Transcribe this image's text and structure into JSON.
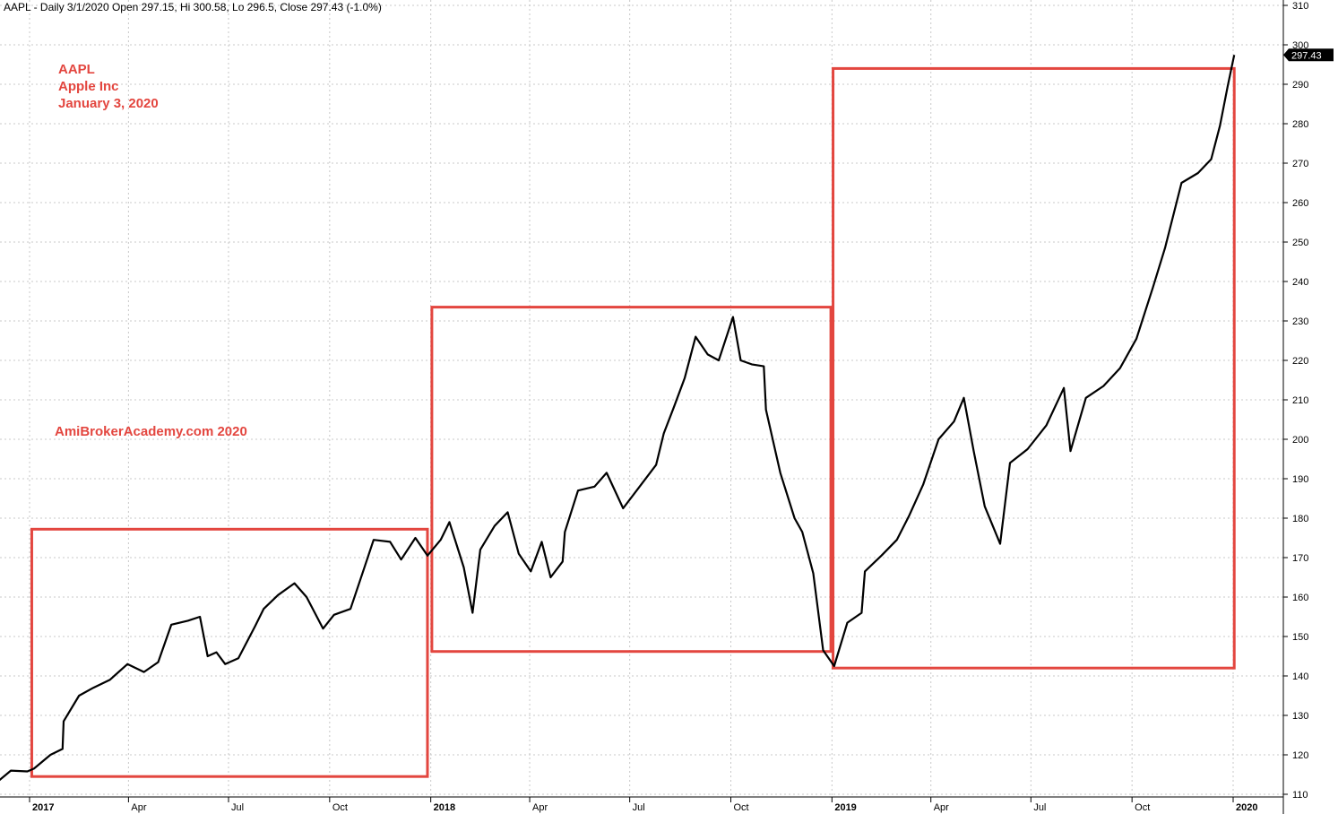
{
  "header": {
    "info": "AAPL - Daily 3/1/2020 Open 297.15, Hi 300.58, Lo 296.5, Close 297.43 (-1.0%)"
  },
  "annotations": {
    "symbol": "AAPL",
    "company": "Apple Inc",
    "date": "January 3, 2020",
    "watermark": "AmiBrokerAcademy.com   2020"
  },
  "colors": {
    "price": "#000000",
    "box": "#e3463f",
    "grid": "#c8c8c8",
    "tag_bg": "#000000",
    "tag_fg": "#ffffff"
  },
  "chart_data": {
    "type": "line",
    "title": "AAPL - Daily",
    "ylim": [
      110,
      310
    ],
    "y_ticks": [
      110,
      120,
      130,
      140,
      150,
      160,
      170,
      180,
      190,
      200,
      210,
      220,
      230,
      240,
      250,
      260,
      270,
      280,
      290,
      300,
      310
    ],
    "x_ticks": [
      {
        "label": "2017",
        "date": "2017-01-01",
        "bold": true
      },
      {
        "label": "Apr",
        "date": "2017-04-01",
        "bold": false
      },
      {
        "label": "Jul",
        "date": "2017-07-01",
        "bold": false
      },
      {
        "label": "Oct",
        "date": "2017-10-01",
        "bold": false
      },
      {
        "label": "2018",
        "date": "2018-01-01",
        "bold": true
      },
      {
        "label": "Apr",
        "date": "2018-04-01",
        "bold": false
      },
      {
        "label": "Jul",
        "date": "2018-07-01",
        "bold": false
      },
      {
        "label": "Oct",
        "date": "2018-10-01",
        "bold": false
      },
      {
        "label": "2019",
        "date": "2019-01-01",
        "bold": true
      },
      {
        "label": "Apr",
        "date": "2019-04-01",
        "bold": false
      },
      {
        "label": "Jul",
        "date": "2019-07-01",
        "bold": false
      },
      {
        "label": "Oct",
        "date": "2019-10-01",
        "bold": false
      },
      {
        "label": "2020",
        "date": "2020-01-01",
        "bold": true
      }
    ],
    "last_price_label": "297.43",
    "last_price": 297.43,
    "series": [
      {
        "points": [
          [
            "2016-12-02",
            113
          ],
          [
            "2016-12-15",
            116
          ],
          [
            "2016-12-30",
            115.8
          ],
          [
            "2017-01-05",
            116.5
          ],
          [
            "2017-01-20",
            120
          ],
          [
            "2017-01-31",
            121.5
          ],
          [
            "2017-02-01",
            128.5
          ],
          [
            "2017-02-15",
            135
          ],
          [
            "2017-02-28",
            137
          ],
          [
            "2017-03-15",
            139
          ],
          [
            "2017-03-31",
            143
          ],
          [
            "2017-04-15",
            141
          ],
          [
            "2017-04-28",
            143.5
          ],
          [
            "2017-05-10",
            153
          ],
          [
            "2017-05-25",
            154
          ],
          [
            "2017-06-05",
            155
          ],
          [
            "2017-06-12",
            145
          ],
          [
            "2017-06-20",
            146
          ],
          [
            "2017-06-28",
            143
          ],
          [
            "2017-07-10",
            144.5
          ],
          [
            "2017-07-25",
            152.5
          ],
          [
            "2017-08-02",
            157
          ],
          [
            "2017-08-15",
            160.5
          ],
          [
            "2017-08-30",
            163.5
          ],
          [
            "2017-09-10",
            160
          ],
          [
            "2017-09-25",
            152
          ],
          [
            "2017-10-05",
            155.5
          ],
          [
            "2017-10-20",
            157
          ],
          [
            "2017-11-01",
            167
          ],
          [
            "2017-11-10",
            174.5
          ],
          [
            "2017-11-25",
            174
          ],
          [
            "2017-12-05",
            169.5
          ],
          [
            "2017-12-18",
            175
          ],
          [
            "2017-12-29",
            170.5
          ],
          [
            "2018-01-10",
            174.5
          ],
          [
            "2018-01-18",
            179
          ],
          [
            "2018-01-31",
            167.5
          ],
          [
            "2018-02-08",
            156
          ],
          [
            "2018-02-15",
            172
          ],
          [
            "2018-02-28",
            178
          ],
          [
            "2018-03-12",
            181.5
          ],
          [
            "2018-03-22",
            171
          ],
          [
            "2018-04-02",
            166.5
          ],
          [
            "2018-04-12",
            174
          ],
          [
            "2018-04-20",
            165
          ],
          [
            "2018-05-01",
            169
          ],
          [
            "2018-05-03",
            176.5
          ],
          [
            "2018-05-15",
            187
          ],
          [
            "2018-05-30",
            188
          ],
          [
            "2018-06-10",
            191.5
          ],
          [
            "2018-06-25",
            182.5
          ],
          [
            "2018-07-10",
            188
          ],
          [
            "2018-07-25",
            193.5
          ],
          [
            "2018-08-01",
            201.5
          ],
          [
            "2018-08-10",
            208
          ],
          [
            "2018-08-20",
            215.5
          ],
          [
            "2018-08-30",
            226
          ],
          [
            "2018-09-10",
            221.5
          ],
          [
            "2018-09-20",
            220
          ],
          [
            "2018-10-03",
            231
          ],
          [
            "2018-10-10",
            220
          ],
          [
            "2018-10-20",
            219
          ],
          [
            "2018-10-31",
            218.5
          ],
          [
            "2018-11-02",
            207.5
          ],
          [
            "2018-11-15",
            191.5
          ],
          [
            "2018-11-28",
            180
          ],
          [
            "2018-12-05",
            176.5
          ],
          [
            "2018-12-15",
            166
          ],
          [
            "2018-12-24",
            146.5
          ],
          [
            "2019-01-03",
            142.5
          ],
          [
            "2019-01-15",
            153.5
          ],
          [
            "2019-01-28",
            156
          ],
          [
            "2019-01-31",
            166.5
          ],
          [
            "2019-02-15",
            170.5
          ],
          [
            "2019-03-01",
            174.5
          ],
          [
            "2019-03-12",
            180.5
          ],
          [
            "2019-03-25",
            188.5
          ],
          [
            "2019-04-08",
            200
          ],
          [
            "2019-04-22",
            204.5
          ],
          [
            "2019-05-01",
            210.5
          ],
          [
            "2019-05-10",
            197
          ],
          [
            "2019-05-20",
            183
          ],
          [
            "2019-06-03",
            173.5
          ],
          [
            "2019-06-12",
            194
          ],
          [
            "2019-06-28",
            197.5
          ],
          [
            "2019-07-15",
            203.5
          ],
          [
            "2019-07-31",
            213
          ],
          [
            "2019-08-06",
            197
          ],
          [
            "2019-08-20",
            210.5
          ],
          [
            "2019-09-05",
            213.5
          ],
          [
            "2019-09-20",
            218
          ],
          [
            "2019-10-05",
            225.5
          ],
          [
            "2019-10-20",
            238.5
          ],
          [
            "2019-10-31",
            248.5
          ],
          [
            "2019-11-15",
            265
          ],
          [
            "2019-11-30",
            267.5
          ],
          [
            "2019-12-12",
            271
          ],
          [
            "2019-12-20",
            279.5
          ],
          [
            "2019-12-27",
            289.5
          ],
          [
            "2020-01-02",
            297.43
          ]
        ]
      }
    ],
    "boxes": [
      {
        "from": "2017-01-03",
        "to": "2017-12-29",
        "low": 114.5,
        "high": 177.2
      },
      {
        "from": "2018-01-02",
        "to": "2018-12-31",
        "low": 146.2,
        "high": 233.5
      },
      {
        "from": "2019-01-02",
        "to": "2020-01-02",
        "low": 142,
        "high": 294
      }
    ]
  }
}
